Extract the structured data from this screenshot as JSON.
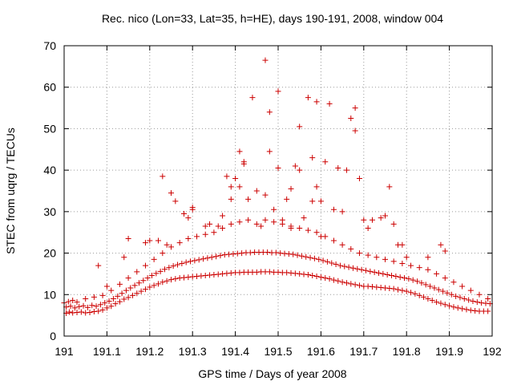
{
  "chart_data": {
    "type": "scatter",
    "title": "Rec. nico (Lon=33, Lat=35, h=HE), days 190-191, 2008, window 004",
    "xlabel": "GPS time / Days of year 2008",
    "ylabel": "STEC from uqrg / TECUs",
    "xlim": [
      191,
      192
    ],
    "ylim": [
      0,
      70
    ],
    "xticks": [
      191,
      191.1,
      191.2,
      191.3,
      191.4,
      191.5,
      191.6,
      191.7,
      191.8,
      191.9,
      192
    ],
    "xtick_labels": [
      "191",
      "191.1",
      "191.2",
      "191.3",
      "191.4",
      "191.5",
      "191.6",
      "191.7",
      "191.8",
      "191.9",
      "192"
    ],
    "yticks": [
      0,
      10,
      20,
      30,
      40,
      50,
      60,
      70
    ],
    "ytick_labels": [
      "0",
      "10",
      "20",
      "30",
      "40",
      "50",
      "60",
      "70"
    ],
    "grid": true,
    "marker": "plus",
    "color": "#cc0000",
    "series": [
      {
        "x": [
          191.005,
          191.012,
          191.02,
          191.03,
          191.04,
          191.05,
          191.06,
          191.07,
          191.08,
          191.09,
          191.1,
          191.11,
          191.12,
          191.13,
          191.14,
          191.15,
          191.16,
          191.17,
          191.18,
          191.19,
          191.2,
          191.21,
          191.22,
          191.23,
          191.24,
          191.25,
          191.26,
          191.27,
          191.28,
          191.29,
          191.3,
          191.31,
          191.32,
          191.33,
          191.34,
          191.35,
          191.36,
          191.37,
          191.38,
          191.39,
          191.4,
          191.41,
          191.42,
          191.43,
          191.44,
          191.45,
          191.46,
          191.47,
          191.48,
          191.49,
          191.5,
          191.51,
          191.52,
          191.53,
          191.54,
          191.55,
          191.56,
          191.57,
          191.58,
          191.59,
          191.6,
          191.61,
          191.62,
          191.63,
          191.64,
          191.65,
          191.66,
          191.67,
          191.68,
          191.69,
          191.7,
          191.71,
          191.72,
          191.73,
          191.74,
          191.75,
          191.76,
          191.77,
          191.78,
          191.79,
          191.8,
          191.81,
          191.82,
          191.83,
          191.84,
          191.85,
          191.86,
          191.87,
          191.88,
          191.89,
          191.9,
          191.91,
          191.92,
          191.93,
          191.94,
          191.95,
          191.96,
          191.97,
          191.98,
          191.99
        ],
        "y": [
          5.5,
          5.8,
          5.6,
          5.7,
          5.8,
          5.6,
          5.7,
          5.9,
          6.0,
          6.3,
          6.8,
          7.2,
          7.8,
          8.3,
          8.9,
          9.3,
          9.8,
          10.3,
          10.8,
          11.3,
          11.8,
          12.2,
          12.6,
          13.0,
          13.3,
          13.6,
          13.8,
          14.0,
          14.1,
          14.2,
          14.3,
          14.4,
          14.5,
          14.6,
          14.7,
          14.8,
          14.9,
          15.0,
          15.1,
          15.2,
          15.3,
          15.3,
          15.4,
          15.4,
          15.4,
          15.4,
          15.5,
          15.5,
          15.5,
          15.4,
          15.4,
          15.3,
          15.3,
          15.2,
          15.1,
          15.0,
          14.9,
          14.8,
          14.6,
          14.4,
          14.2,
          14.0,
          13.8,
          13.5,
          13.3,
          13.0,
          12.8,
          12.6,
          12.4,
          12.2,
          12.0,
          12.0,
          11.9,
          11.8,
          11.7,
          11.6,
          11.5,
          11.4,
          11.2,
          11.0,
          10.8,
          10.5,
          10.2,
          9.8,
          9.4,
          9.0,
          8.6,
          8.2,
          7.9,
          7.6,
          7.3,
          7.0,
          6.8,
          6.6,
          6.4,
          6.2,
          6.1,
          6.0,
          6.0,
          6.0
        ]
      },
      {
        "x": [
          191.005,
          191.015,
          191.025,
          191.035,
          191.045,
          191.055,
          191.065,
          191.075,
          191.085,
          191.095,
          191.105,
          191.115,
          191.125,
          191.135,
          191.145,
          191.155,
          191.165,
          191.175,
          191.185,
          191.195,
          191.205,
          191.215,
          191.225,
          191.235,
          191.245,
          191.255,
          191.265,
          191.275,
          191.285,
          191.295,
          191.305,
          191.315,
          191.325,
          191.335,
          191.345,
          191.355,
          191.365,
          191.375,
          191.385,
          191.395,
          191.405,
          191.415,
          191.425,
          191.435,
          191.445,
          191.455,
          191.465,
          191.475,
          191.485,
          191.495,
          191.505,
          191.515,
          191.525,
          191.535,
          191.545,
          191.555,
          191.565,
          191.575,
          191.585,
          191.595,
          191.605,
          191.615,
          191.625,
          191.635,
          191.645,
          191.655,
          191.665,
          191.675,
          191.685,
          191.695,
          191.705,
          191.715,
          191.725,
          191.735,
          191.745,
          191.755,
          191.765,
          191.775,
          191.785,
          191.795,
          191.805,
          191.815,
          191.825,
          191.835,
          191.845,
          191.855,
          191.865,
          191.875,
          191.885,
          191.895,
          191.905,
          191.915,
          191.925,
          191.935,
          191.945,
          191.955,
          191.965,
          191.975,
          191.985,
          191.995
        ],
        "y": [
          7.0,
          7.2,
          6.8,
          7.1,
          7.3,
          6.9,
          7.4,
          7.2,
          7.6,
          8.0,
          8.4,
          9.0,
          9.6,
          10.3,
          11.0,
          11.6,
          12.2,
          12.8,
          13.4,
          14.0,
          14.6,
          15.1,
          15.6,
          16.1,
          16.5,
          16.9,
          17.2,
          17.5,
          17.8,
          18.0,
          18.2,
          18.4,
          18.6,
          18.8,
          19.0,
          19.2,
          19.4,
          19.6,
          19.7,
          19.8,
          19.9,
          20.0,
          20.1,
          20.1,
          20.2,
          20.2,
          20.2,
          20.2,
          20.1,
          20.1,
          20.0,
          19.9,
          19.8,
          19.7,
          19.5,
          19.3,
          19.1,
          18.9,
          18.7,
          18.5,
          18.2,
          17.9,
          17.6,
          17.3,
          17.0,
          16.8,
          16.6,
          16.4,
          16.2,
          16.0,
          15.8,
          15.6,
          15.4,
          15.2,
          15.0,
          14.8,
          14.6,
          14.4,
          14.2,
          14.0,
          13.8,
          13.5,
          13.2,
          12.8,
          12.4,
          12.0,
          11.6,
          11.2,
          10.8,
          10.4,
          10.0,
          9.6,
          9.3,
          9.0,
          8.7,
          8.4,
          8.2,
          8.0,
          7.9,
          7.8
        ]
      },
      {
        "x": [
          191.0,
          191.01,
          191.02,
          191.03,
          191.05,
          191.07,
          191.09,
          191.11,
          191.13,
          191.15,
          191.17,
          191.19,
          191.21,
          191.23,
          191.25,
          191.27,
          191.29,
          191.31,
          191.33,
          191.35,
          191.37,
          191.39,
          191.41,
          191.43,
          191.45,
          191.47,
          191.49,
          191.51,
          191.53,
          191.55,
          191.57,
          191.59,
          191.61,
          191.63,
          191.65,
          191.67,
          191.69,
          191.71,
          191.73,
          191.75,
          191.77,
          191.79,
          191.81,
          191.83,
          191.85,
          191.87,
          191.89,
          191.91,
          191.93,
          191.95,
          191.97,
          191.99
        ],
        "y": [
          8.0,
          8.3,
          8.6,
          8.2,
          9.0,
          9.4,
          9.8,
          11.0,
          12.5,
          14.0,
          15.5,
          17.0,
          18.5,
          20.0,
          21.5,
          22.5,
          23.5,
          24.0,
          24.5,
          25.0,
          26.0,
          27.0,
          27.5,
          28.0,
          27.0,
          28.0,
          27.5,
          27.0,
          26.5,
          26.0,
          25.5,
          25.0,
          24.0,
          23.0,
          22.0,
          21.0,
          20.0,
          19.5,
          19.0,
          18.5,
          18.0,
          17.5,
          17.0,
          16.5,
          16.0,
          15.0,
          14.0,
          13.0,
          12.0,
          11.0,
          10.0,
          9.0
        ]
      },
      {
        "x": [
          191.08,
          191.1,
          191.14,
          191.15,
          191.19,
          191.2,
          191.22,
          191.23,
          191.24,
          191.25,
          191.26,
          191.28,
          191.29,
          191.3,
          191.3,
          191.33,
          191.34,
          191.36,
          191.37,
          191.38,
          191.39,
          191.39,
          191.4,
          191.41,
          191.41,
          191.42,
          191.42,
          191.43,
          191.44,
          191.45,
          191.46,
          191.47,
          191.47,
          191.48,
          191.48,
          191.49,
          191.5,
          191.5,
          191.51,
          191.52,
          191.53,
          191.53,
          191.54,
          191.55,
          191.55,
          191.56,
          191.57,
          191.58,
          191.58,
          191.59,
          191.59,
          191.6,
          191.6,
          191.61,
          191.62,
          191.63,
          191.64,
          191.65,
          191.66,
          191.67,
          191.68,
          191.68,
          191.69,
          191.7,
          191.71,
          191.72,
          191.74,
          191.75,
          191.76,
          191.77,
          191.78,
          191.79,
          191.8,
          191.85,
          191.88,
          191.89
        ],
        "y": [
          17.0,
          12.0,
          19.0,
          23.5,
          22.5,
          23.0,
          23.0,
          38.5,
          22.0,
          34.5,
          32.5,
          29.5,
          28.5,
          31.0,
          30.5,
          26.5,
          27.0,
          26.5,
          29.0,
          38.5,
          33.0,
          36.0,
          38.0,
          36.0,
          44.5,
          41.5,
          42.0,
          33.0,
          57.5,
          35.0,
          26.5,
          66.5,
          34.0,
          44.5,
          54.0,
          30.5,
          40.5,
          59.0,
          28.0,
          33.0,
          35.5,
          26.0,
          41.0,
          40.0,
          50.5,
          28.5,
          57.5,
          43.0,
          32.5,
          36.0,
          56.5,
          32.5,
          24.0,
          42.0,
          56.0,
          30.5,
          40.5,
          30.0,
          40.0,
          52.5,
          49.5,
          55.0,
          38.0,
          28.0,
          26.0,
          28.0,
          28.5,
          29.0,
          36.0,
          27.0,
          22.0,
          22.0,
          19.0,
          19.0,
          22.0,
          20.5
        ]
      }
    ]
  }
}
